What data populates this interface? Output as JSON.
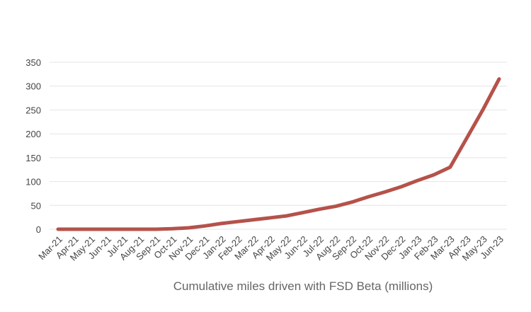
{
  "chart_data": {
    "type": "line",
    "x_label": "Cumulative miles driven with FSD Beta (millions)",
    "categories": [
      "Mar-21",
      "Apr-21",
      "May-21",
      "Jun-21",
      "Jul-21",
      "Aug-21",
      "Sep-21",
      "Oct-21",
      "Nov-21",
      "Dec-21",
      "Jan-22",
      "Feb-22",
      "Mar-22",
      "Apr-22",
      "May-22",
      "Jun-22",
      "Jul-22",
      "Aug-22",
      "Sep-22",
      "Oct-22",
      "Nov-22",
      "Dec-22",
      "Jan-23",
      "Feb-23",
      "Mar-23",
      "Apr-23",
      "May-23",
      "Jun-23"
    ],
    "values": [
      0,
      0,
      0,
      0,
      0,
      0,
      0,
      1,
      3,
      7,
      12,
      16,
      20,
      24,
      28,
      35,
      42,
      48,
      57,
      68,
      78,
      89,
      102,
      114,
      130,
      190,
      250,
      315
    ],
    "color": "#b5524a",
    "ylim": [
      0,
      350
    ],
    "yticks": [
      0,
      50,
      100,
      150,
      200,
      250,
      300,
      350
    ],
    "grid": true
  }
}
